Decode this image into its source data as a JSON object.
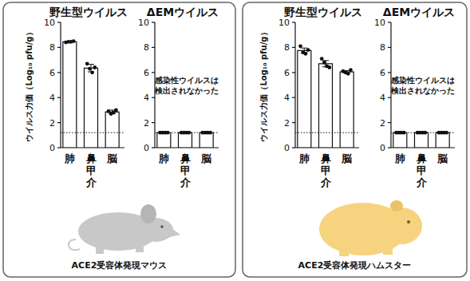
{
  "panels": [
    "ACE2受容体発現マウス",
    "ACE2受容体発現ハムスター"
  ],
  "chart_data": [
    {
      "type": "bar",
      "title": "野生型ウイルス",
      "y_label": "ウイルス力価（Log₁₀ pfu/g）",
      "categories": [
        "肺",
        "鼻甲介",
        "脳"
      ],
      "values": [
        8.45,
        6.35,
        2.85
      ],
      "errors": [
        0.03,
        0.3,
        0.15
      ],
      "points": [
        [
          8.4,
          8.45,
          8.45,
          8.5
        ],
        [
          6.7,
          6.3,
          6.0,
          6.4
        ],
        [
          2.9,
          2.7,
          2.8,
          3.0
        ]
      ],
      "color": "#ffffff",
      "ylim": [
        0,
        10
      ],
      "yticks": [
        0,
        2,
        4,
        6,
        8,
        10
      ],
      "detection_limit": 1.2
    },
    {
      "type": "bar",
      "title": "ΔEMウイルス",
      "categories": [
        "肺",
        "鼻甲介",
        "脳"
      ],
      "values": [
        1.2,
        1.2,
        1.2
      ],
      "errors": [
        0,
        0,
        0
      ],
      "points": [
        [
          1.2,
          1.2,
          1.2,
          1.2
        ],
        [
          1.2,
          1.2,
          1.2,
          1.2
        ],
        [
          1.2,
          1.2,
          1.2,
          1.2
        ]
      ],
      "color": "#ffffff",
      "ylim": [
        0,
        10
      ],
      "yticks": [
        0,
        2,
        4,
        6,
        8,
        10
      ],
      "detection_limit": 1.2,
      "annotation": [
        "感染性ウイルスは",
        "検出されなかった"
      ]
    },
    {
      "type": "bar",
      "title": "野生型ウイルス",
      "y_label": "ウイルス力価（Log₁₀ pfu/g）",
      "categories": [
        "肺",
        "鼻甲介",
        "脳"
      ],
      "values": [
        7.75,
        6.7,
        6.05
      ],
      "errors": [
        0.2,
        0.25,
        0.1
      ],
      "points": [
        [
          8.1,
          7.6,
          7.5,
          7.8
        ],
        [
          7.1,
          6.8,
          6.5,
          6.4
        ],
        [
          6.1,
          6.0,
          5.9,
          6.2
        ]
      ],
      "color": "#ffffff",
      "ylim": [
        0,
        10
      ],
      "yticks": [
        0,
        2,
        4,
        6,
        8,
        10
      ],
      "detection_limit": 1.2
    },
    {
      "type": "bar",
      "title": "ΔEMウイルス",
      "categories": [
        "肺",
        "鼻甲介",
        "脳"
      ],
      "values": [
        1.2,
        1.2,
        1.2
      ],
      "errors": [
        0,
        0,
        0
      ],
      "points": [
        [
          1.2,
          1.2,
          1.2,
          1.2
        ],
        [
          1.2,
          1.2,
          1.2,
          1.2
        ],
        [
          1.2,
          1.2,
          1.2,
          1.2
        ]
      ],
      "color": "#ffffff",
      "ylim": [
        0,
        10
      ],
      "yticks": [
        0,
        2,
        4,
        6,
        8,
        10
      ],
      "detection_limit": 1.2,
      "annotation": [
        "感染性ウイルスは",
        "検出されなかった"
      ]
    }
  ]
}
